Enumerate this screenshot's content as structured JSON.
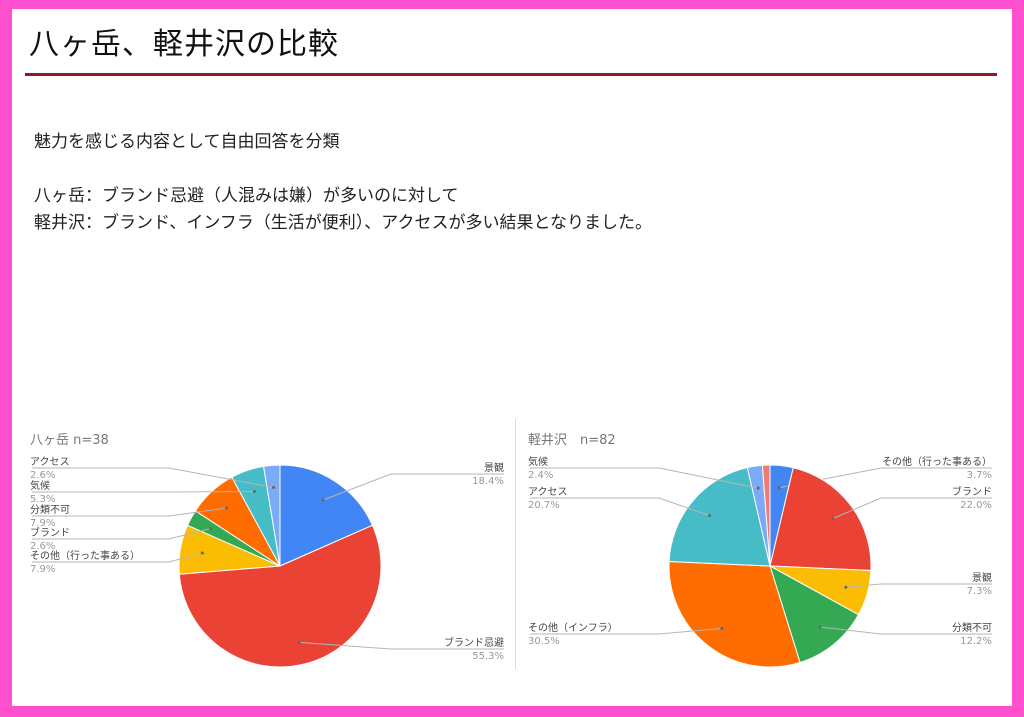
{
  "slide": {
    "title": "八ヶ岳、軽井沢の比較",
    "intro": "魅力を感じる内容として自由回答を分類",
    "line1": "八ヶ岳：ブランド忌避（人混みは嫌）が多いのに対して",
    "line2": "軽井沢：ブランド、インフラ（生活が便利）、アクセスが多い結果となりました。"
  },
  "colors": {
    "border": "#ff4fcf",
    "rule": "#8b1a2b"
  },
  "chart_data": [
    {
      "type": "pie",
      "title": "八ヶ岳 n=38",
      "slices": [
        {
          "label": "景観",
          "value": 18.4,
          "pct_text": "18.4%",
          "color": "#4285f4"
        },
        {
          "label": "ブランド忌避",
          "value": 55.3,
          "pct_text": "55.3%",
          "color": "#ea4335"
        },
        {
          "label": "その他（行った事ある）",
          "value": 7.9,
          "pct_text": "7.9%",
          "color": "#fbbc04"
        },
        {
          "label": "ブランド",
          "value": 2.6,
          "pct_text": "2.6%",
          "color": "#34a853"
        },
        {
          "label": "分類不可",
          "value": 7.9,
          "pct_text": "7.9%",
          "color": "#ff6d01"
        },
        {
          "label": "気候",
          "value": 5.3,
          "pct_text": "5.3%",
          "color": "#46bdc6"
        },
        {
          "label": "アクセス",
          "value": 2.6,
          "pct_text": "2.6%",
          "color": "#7baaf7"
        }
      ]
    },
    {
      "type": "pie",
      "title": "軽井沢　n=82",
      "slices": [
        {
          "label": "その他（行った事ある）",
          "value": 3.7,
          "pct_text": "3.7%",
          "color": "#4285f4"
        },
        {
          "label": "ブランド",
          "value": 22.0,
          "pct_text": "22.0%",
          "color": "#ea4335"
        },
        {
          "label": "景観",
          "value": 7.3,
          "pct_text": "7.3%",
          "color": "#fbbc04"
        },
        {
          "label": "分類不可",
          "value": 12.2,
          "pct_text": "12.2%",
          "color": "#34a853"
        },
        {
          "label": "その他（インフラ）",
          "value": 30.5,
          "pct_text": "30.5%",
          "color": "#ff6d01"
        },
        {
          "label": "アクセス",
          "value": 20.7,
          "pct_text": "20.7%",
          "color": "#46bdc6"
        },
        {
          "label": "気候",
          "value": 2.4,
          "pct_text": "2.4%",
          "color": "#7baaf7"
        },
        {
          "label": "",
          "value": 1.2,
          "pct_text": "",
          "color": "#f07b72"
        }
      ]
    }
  ]
}
